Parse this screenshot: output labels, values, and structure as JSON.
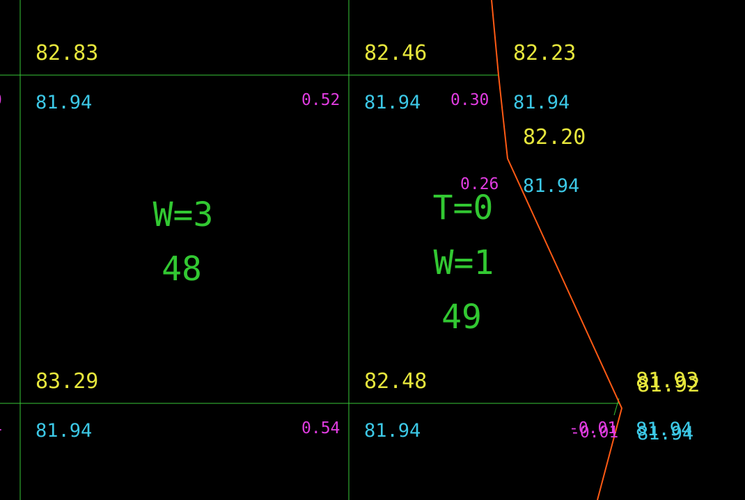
{
  "colors": {
    "background": "#000000",
    "grid": "#37c837",
    "boundary": "#ff5a14",
    "design_elevation": "#e6e63c",
    "existing_elevation": "#3cc8e6",
    "cut_fill": "#e03ce0",
    "block_label": "#32c832"
  },
  "grid_lines": {
    "horizontal": [
      "h1",
      "h2"
    ],
    "vertical": [
      "v1",
      "v2"
    ]
  },
  "labels": {
    "design_top_left": "82.83",
    "design_top_mid": "82.46",
    "design_top_right": "82.23",
    "design_boundary_mid": "82.20",
    "design_bottom_left": "83.29",
    "design_bottom_mid": "82.48",
    "design_bottom_right_a": "81.93",
    "design_bottom_right_b": "81.92",
    "existing_top_left": "81.94",
    "existing_top_mid": "81.94",
    "existing_top_right": "81.94",
    "existing_boundary_mid": "81.94",
    "existing_bottom_left": "81.94",
    "existing_bottom_mid": "81.94",
    "existing_bottom_right_a": "81.94",
    "existing_bottom_right_b": "81.94",
    "cut_top_left": "0.52",
    "cut_top_mid": "0.30",
    "cut_boundary_mid": "0.26",
    "cut_bottom_left": "0.54",
    "cut_bottom_right_a": "-0.01",
    "cut_bottom_right_b": "-0.01",
    "block1_w": "W=3",
    "block1_num": "48",
    "block2_t": "T=0",
    "block2_w": "W=1",
    "block2_num": "49"
  }
}
